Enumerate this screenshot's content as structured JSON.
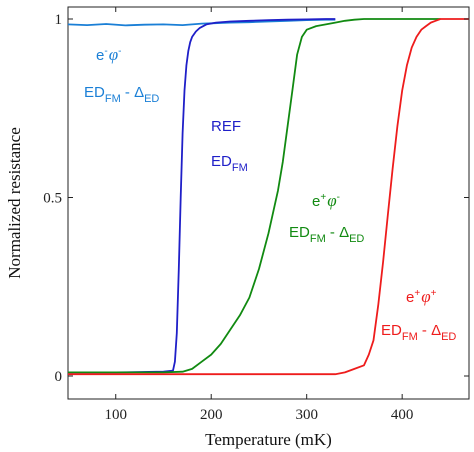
{
  "chart_data": {
    "type": "line",
    "title": "",
    "xlabel": "Temperature (mK)",
    "ylabel": "Normalized resistance",
    "xlim": [
      50,
      470
    ],
    "ylim": [
      0,
      1
    ],
    "xticks": [
      100,
      200,
      300,
      400
    ],
    "yticks": [
      0,
      0.5,
      1
    ],
    "ytick_labels": [
      "0",
      "0.5",
      "1"
    ],
    "grid": false,
    "legend": "none",
    "series": [
      {
        "color": "#1a7fd6",
        "x": [
          50,
          70,
          90,
          110,
          130,
          150,
          170,
          180,
          190,
          200,
          220,
          240,
          260,
          280,
          300,
          320,
          330
        ],
        "y": [
          0.985,
          0.983,
          0.986,
          0.982,
          0.984,
          0.985,
          0.983,
          0.985,
          0.987,
          0.988,
          0.99,
          0.991,
          0.993,
          0.995,
          0.997,
          0.998,
          0.998
        ]
      },
      {
        "color": "#1f1fc8",
        "x": [
          50,
          100,
          150,
          160,
          162,
          164,
          166,
          168,
          170,
          172,
          174,
          176,
          178,
          180,
          184,
          188,
          195,
          205,
          220,
          240,
          260,
          280,
          300,
          320,
          330
        ],
        "y": [
          0.01,
          0.01,
          0.012,
          0.015,
          0.04,
          0.12,
          0.3,
          0.5,
          0.68,
          0.8,
          0.87,
          0.91,
          0.935,
          0.95,
          0.965,
          0.975,
          0.985,
          0.99,
          0.993,
          0.995,
          0.997,
          0.998,
          0.999,
          1.0,
          1.0
        ]
      },
      {
        "color": "#118a11",
        "x": [
          50,
          100,
          150,
          170,
          180,
          190,
          200,
          210,
          220,
          230,
          240,
          250,
          260,
          270,
          275,
          280,
          285,
          290,
          295,
          300,
          310,
          320,
          330,
          340,
          350,
          360,
          380,
          400,
          420,
          440
        ],
        "y": [
          0.01,
          0.01,
          0.01,
          0.012,
          0.02,
          0.04,
          0.06,
          0.09,
          0.13,
          0.17,
          0.22,
          0.3,
          0.4,
          0.52,
          0.6,
          0.7,
          0.8,
          0.9,
          0.95,
          0.97,
          0.98,
          0.985,
          0.99,
          0.995,
          0.998,
          1.0,
          1.0,
          1.0,
          1.0,
          1.0
        ]
      },
      {
        "color": "#ee1c1c",
        "x": [
          50,
          100,
          150,
          200,
          250,
          300,
          330,
          340,
          350,
          360,
          365,
          370,
          375,
          380,
          385,
          390,
          395,
          400,
          405,
          410,
          415,
          420,
          425,
          430,
          435,
          440,
          445,
          450,
          460,
          470
        ],
        "y": [
          0.005,
          0.005,
          0.005,
          0.005,
          0.005,
          0.005,
          0.005,
          0.01,
          0.02,
          0.03,
          0.06,
          0.1,
          0.2,
          0.32,
          0.45,
          0.58,
          0.7,
          0.8,
          0.87,
          0.92,
          0.95,
          0.97,
          0.98,
          0.99,
          0.995,
          1.0,
          1.0,
          1.0,
          1.0,
          1.0
        ]
      }
    ],
    "annotations": [
      {
        "color": "#1a7fd6",
        "line1": {
          "base": "e",
          "sup1": "-",
          "phi": "φ",
          "sup2": "-"
        },
        "line2": {
          "base": "ED",
          "sub1": "FM",
          "mid": " - Δ",
          "sub2": "ED"
        }
      },
      {
        "color": "#1f1fc8",
        "line1": {
          "text": "REF"
        },
        "line2": {
          "base": "ED",
          "sub1": "FM"
        }
      },
      {
        "color": "#118a11",
        "line1": {
          "base": "e",
          "sup1": "+",
          "phi": "φ",
          "sup2": "-"
        },
        "line2": {
          "base": "ED",
          "sub1": "FM",
          "mid": " - Δ",
          "sub2": "ED"
        }
      },
      {
        "color": "#ee1c1c",
        "line1": {
          "base": "e",
          "sup1": "+",
          "phi": "φ",
          "sup2": "+"
        },
        "line2": {
          "base": "ED",
          "sub1": "FM",
          "mid": " - Δ",
          "sub2": "ED"
        }
      }
    ]
  }
}
